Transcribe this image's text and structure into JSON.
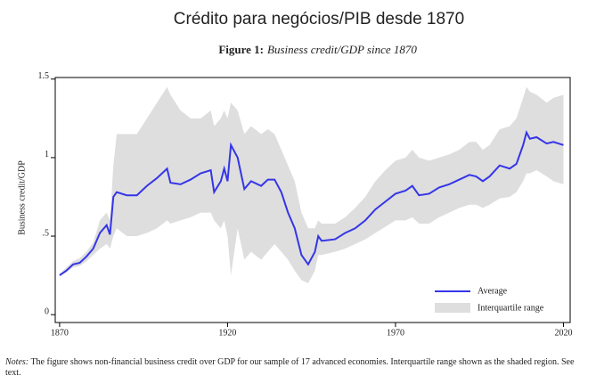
{
  "chart_data": {
    "type": "line",
    "title": "Crédito para negócios/PIB desde 1870",
    "figure_label": "Figure 1:",
    "subtitle": "Business credit/GDP since 1870",
    "ylabel": "Business credit/GDP",
    "note_label": "Notes:",
    "note": "The figure shows non-financial business credit over GDP for our sample of 17 advanced economies. Interquartile range shown as the shaded region. See text.",
    "x": [
      1870,
      1872,
      1874,
      1876,
      1878,
      1880,
      1882,
      1884,
      1885,
      1886,
      1887,
      1890,
      1893,
      1896,
      1899,
      1902,
      1903,
      1906,
      1909,
      1912,
      1915,
      1916,
      1918,
      1919,
      1920,
      1921,
      1923,
      1925,
      1927,
      1930,
      1932,
      1934,
      1936,
      1938,
      1940,
      1942,
      1944,
      1946,
      1947,
      1948,
      1952,
      1955,
      1958,
      1961,
      1964,
      1967,
      1970,
      1973,
      1975,
      1977,
      1980,
      1983,
      1986,
      1989,
      1992,
      1994,
      1996,
      1998,
      2001,
      2004,
      2006,
      2008,
      2009,
      2010,
      2012,
      2015,
      2017,
      2020
    ],
    "series": [
      {
        "name": "Average",
        "color": "#3535e8",
        "values": [
          0.25,
          0.28,
          0.32,
          0.33,
          0.37,
          0.42,
          0.52,
          0.57,
          0.51,
          0.75,
          0.78,
          0.76,
          0.76,
          0.82,
          0.87,
          0.93,
          0.84,
          0.83,
          0.86,
          0.9,
          0.92,
          0.78,
          0.85,
          0.93,
          0.85,
          1.08,
          1.0,
          0.8,
          0.85,
          0.82,
          0.86,
          0.86,
          0.78,
          0.65,
          0.55,
          0.38,
          0.32,
          0.4,
          0.5,
          0.47,
          0.48,
          0.52,
          0.55,
          0.6,
          0.67,
          0.72,
          0.77,
          0.79,
          0.82,
          0.76,
          0.77,
          0.81,
          0.83,
          0.86,
          0.89,
          0.88,
          0.85,
          0.88,
          0.95,
          0.93,
          0.96,
          1.08,
          1.16,
          1.12,
          1.13,
          1.09,
          1.1,
          1.08
        ]
      }
    ],
    "band": {
      "name": "Interquartile range",
      "color": "#dedede",
      "lower": [
        0.25,
        0.27,
        0.3,
        0.31,
        0.34,
        0.38,
        0.42,
        0.45,
        0.42,
        0.5,
        0.55,
        0.5,
        0.5,
        0.52,
        0.55,
        0.6,
        0.58,
        0.6,
        0.62,
        0.65,
        0.65,
        0.6,
        0.55,
        0.6,
        0.5,
        0.25,
        0.55,
        0.35,
        0.4,
        0.35,
        0.4,
        0.45,
        0.4,
        0.35,
        0.28,
        0.22,
        0.2,
        0.28,
        0.38,
        0.38,
        0.4,
        0.42,
        0.45,
        0.48,
        0.52,
        0.56,
        0.6,
        0.6,
        0.62,
        0.58,
        0.58,
        0.62,
        0.65,
        0.68,
        0.7,
        0.7,
        0.68,
        0.7,
        0.74,
        0.75,
        0.78,
        0.85,
        0.9,
        0.9,
        0.92,
        0.88,
        0.85,
        0.83
      ],
      "upper": [
        0.26,
        0.3,
        0.34,
        0.36,
        0.4,
        0.46,
        0.6,
        0.65,
        0.6,
        0.95,
        1.15,
        1.15,
        1.15,
        1.25,
        1.35,
        1.45,
        1.4,
        1.3,
        1.25,
        1.25,
        1.3,
        1.2,
        1.25,
        1.3,
        1.25,
        1.35,
        1.3,
        1.15,
        1.2,
        1.15,
        1.18,
        1.15,
        1.05,
        0.95,
        0.85,
        0.65,
        0.55,
        0.55,
        0.6,
        0.58,
        0.58,
        0.62,
        0.68,
        0.75,
        0.85,
        0.92,
        0.98,
        1.0,
        1.05,
        1.0,
        0.98,
        1.0,
        1.02,
        1.05,
        1.1,
        1.1,
        1.05,
        1.08,
        1.18,
        1.2,
        1.25,
        1.38,
        1.45,
        1.42,
        1.4,
        1.35,
        1.38,
        1.4
      ]
    },
    "xlim": [
      1868.7,
      2022
    ],
    "xticks": [
      1870,
      1920,
      1970,
      2020
    ],
    "ylim": [
      -0.05,
      1.51
    ],
    "yticks": [
      0,
      {
        "value": 0.5,
        "label": ".5"
      },
      1,
      1.5
    ],
    "legend": "lower right"
  }
}
